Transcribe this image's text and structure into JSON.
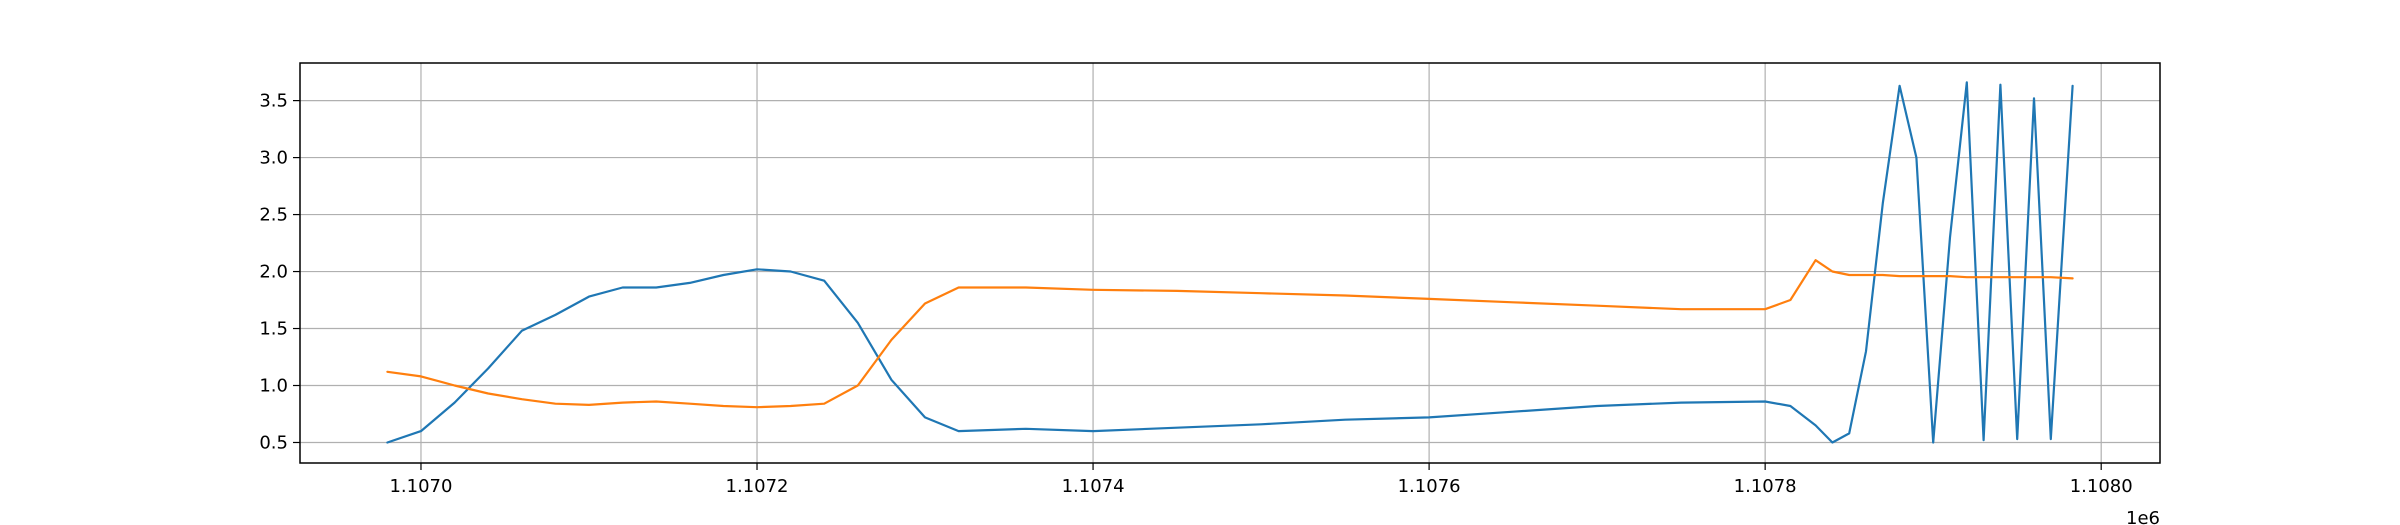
{
  "chart_data": {
    "type": "line",
    "title": "",
    "xlabel": "",
    "ylabel": "",
    "x_offset_label": "1e6",
    "xlim": [
      1.106928,
      1.108035
    ],
    "ylim": [
      0.32,
      3.83
    ],
    "x_ticks": [
      1.107,
      1.1072,
      1.1074,
      1.1076,
      1.1078,
      1.108
    ],
    "x_tick_labels": [
      "1.1070",
      "1.1072",
      "1.1074",
      "1.1076",
      "1.1078",
      "1.1080"
    ],
    "y_ticks": [
      0.5,
      1.0,
      1.5,
      2.0,
      2.5,
      3.0,
      3.5
    ],
    "y_tick_labels": [
      "0.5",
      "1.0",
      "1.5",
      "2.0",
      "2.5",
      "3.0",
      "3.5"
    ],
    "grid": true,
    "legend": "none",
    "colors": {
      "series_1": "#1f77b4",
      "series_2": "#ff7f0e",
      "grid": "#b0b0b0",
      "axes": "#000000"
    },
    "series": [
      {
        "color": "#1f77b4",
        "x": [
          1.10698,
          1.107,
          1.10702,
          1.10704,
          1.10706,
          1.10708,
          1.1071,
          1.10712,
          1.10714,
          1.10716,
          1.10718,
          1.1072,
          1.10722,
          1.10724,
          1.10726,
          1.10728,
          1.1073,
          1.10732,
          1.10736,
          1.1074,
          1.10745,
          1.1075,
          1.10755,
          1.1076,
          1.10765,
          1.1077,
          1.10775,
          1.1078,
          1.107815,
          1.10783,
          1.10784,
          1.10785,
          1.10786,
          1.10787,
          1.10788,
          1.10789,
          1.1079,
          1.10791,
          1.10792,
          1.10793,
          1.10794,
          1.10795,
          1.10796,
          1.10797,
          1.107983
        ],
        "y": [
          0.5,
          0.6,
          0.85,
          1.15,
          1.48,
          1.62,
          1.78,
          1.86,
          1.86,
          1.9,
          1.97,
          2.02,
          2.0,
          1.92,
          1.55,
          1.05,
          0.72,
          0.6,
          0.62,
          0.6,
          0.63,
          0.66,
          0.7,
          0.72,
          0.77,
          0.82,
          0.85,
          0.86,
          0.82,
          0.65,
          0.5,
          0.58,
          1.3,
          2.6,
          3.63,
          3.0,
          0.5,
          2.3,
          3.66,
          0.52,
          3.64,
          0.53,
          3.52,
          0.53,
          3.63
        ]
      },
      {
        "color": "#ff7f0e",
        "x": [
          1.10698,
          1.107,
          1.10702,
          1.10704,
          1.10706,
          1.10708,
          1.1071,
          1.10712,
          1.10714,
          1.10716,
          1.10718,
          1.1072,
          1.10722,
          1.10724,
          1.10726,
          1.10728,
          1.1073,
          1.10732,
          1.10736,
          1.1074,
          1.10745,
          1.1075,
          1.10755,
          1.1076,
          1.10765,
          1.1077,
          1.10775,
          1.1078,
          1.107815,
          1.10783,
          1.10784,
          1.10785,
          1.10786,
          1.10787,
          1.10788,
          1.10789,
          1.1079,
          1.10791,
          1.10792,
          1.10793,
          1.10794,
          1.10795,
          1.10796,
          1.10797,
          1.107983
        ],
        "y": [
          1.12,
          1.08,
          1.0,
          0.93,
          0.88,
          0.84,
          0.83,
          0.85,
          0.86,
          0.84,
          0.82,
          0.81,
          0.82,
          0.84,
          1.0,
          1.4,
          1.72,
          1.86,
          1.86,
          1.84,
          1.83,
          1.81,
          1.79,
          1.76,
          1.73,
          1.7,
          1.67,
          1.67,
          1.75,
          2.1,
          2.0,
          1.97,
          1.97,
          1.97,
          1.96,
          1.96,
          1.96,
          1.96,
          1.95,
          1.95,
          1.95,
          1.95,
          1.95,
          1.95,
          1.94
        ]
      }
    ]
  }
}
